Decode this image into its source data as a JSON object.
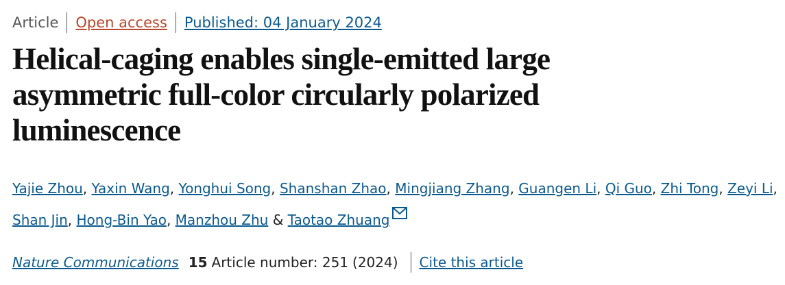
{
  "header": {
    "article_type": "Article",
    "access": "Open access",
    "published": "Published: 04 January 2024"
  },
  "title": "Helical-caging enables single-emitted large asymmetric full-color circularly polarized luminescence",
  "authors": [
    "Yajie Zhou",
    "Yaxin Wang",
    "Yonghui Song",
    "Shanshan Zhao",
    "Mingjiang Zhang",
    "Guangen Li",
    "Qi Guo",
    "Zhi Tong",
    "Zeyi Li",
    "Shan Jin",
    "Hong-Bin Yao",
    "Manzhou Zhu",
    "Taotao Zhuang"
  ],
  "author_separator": ",",
  "author_conjunction": "&",
  "citation": {
    "journal": "Nature Communications",
    "volume": "15",
    "article_number": "Article number: 251",
    "year": "(2024)",
    "cite": "Cite this article"
  }
}
